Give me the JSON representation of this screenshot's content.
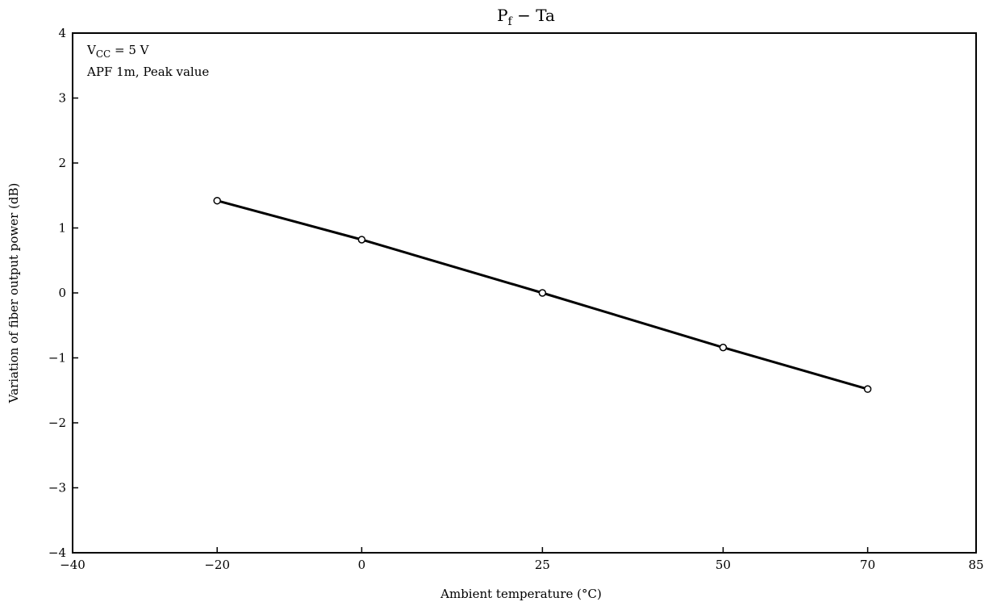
{
  "chart_data": {
    "type": "line",
    "title_main": "P",
    "title_sub": "f",
    "title_rest": " − Ta",
    "xlabel": "Ambient temperature (°C)",
    "ylabel": "Variation of fiber output power (dB)",
    "xlim": [
      -40,
      85
    ],
    "ylim": [
      -4,
      4
    ],
    "xticks": [
      -40,
      -20,
      0,
      25,
      50,
      70,
      85
    ],
    "yticks": [
      -4,
      -3,
      -2,
      -1,
      0,
      1,
      2,
      3,
      4
    ],
    "xtick_labels": [
      "−40",
      "−20",
      "0",
      "25",
      "50",
      "70",
      "85"
    ],
    "ytick_labels": [
      "−4",
      "−3",
      "−2",
      "−1",
      "0",
      "1",
      "2",
      "3",
      "4"
    ],
    "grid": false,
    "annotations": {
      "line1_main": "V",
      "line1_sub": "CC",
      "line1_rest": " = 5 V",
      "line2": "APF 1m, Peak value"
    },
    "series": [
      {
        "x": [
          -20,
          0,
          25,
          50,
          70
        ],
        "y": [
          1.42,
          0.82,
          0.0,
          -0.84,
          -1.48
        ],
        "color": "#000000",
        "marker": "open-circle"
      }
    ]
  }
}
